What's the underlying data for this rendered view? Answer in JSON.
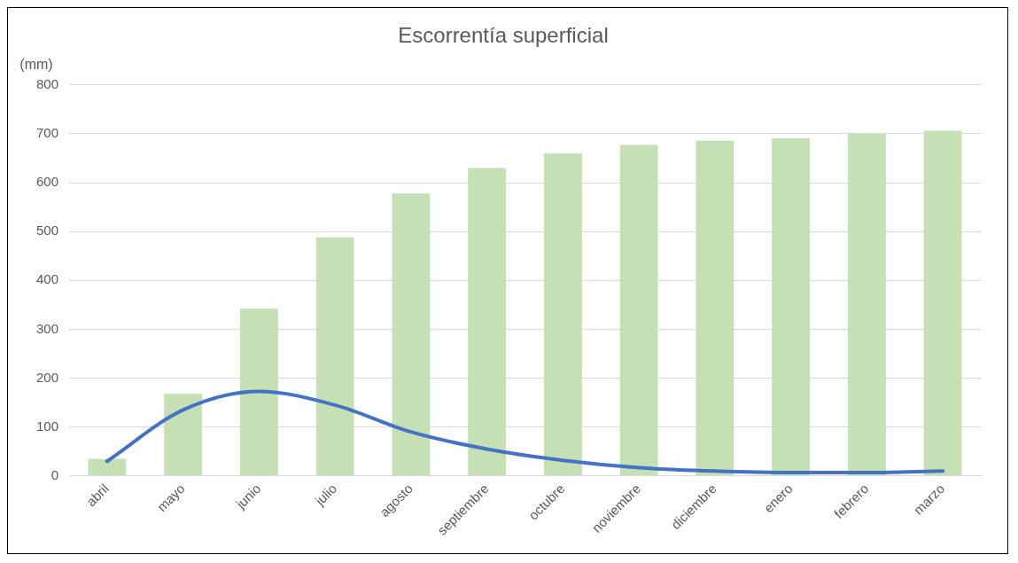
{
  "chart_data": {
    "type": "bar",
    "title": "Escorrentía superficial",
    "ylabel": "(mm)",
    "categories": [
      "abril",
      "mayo",
      "junio",
      "julio",
      "agosto",
      "septiembre",
      "octubre",
      "noviembre",
      "diciembre",
      "enero",
      "febrero",
      "marzo"
    ],
    "series": [
      {
        "color": "#c5e0b4",
        "values": [
          35,
          168,
          342,
          488,
          578,
          630,
          660,
          677,
          686,
          691,
          700,
          706
        ]
      },
      {
        "type": "line",
        "color": "#4472c4",
        "values": [
          30,
          135,
          173,
          145,
          90,
          55,
          32,
          17,
          10,
          7,
          7,
          10
        ]
      }
    ],
    "ylim": [
      0,
      800
    ],
    "yticks": [
      0,
      100,
      200,
      300,
      400,
      500,
      600,
      700,
      800
    ],
    "grid": "y",
    "legend": false,
    "marker": "none",
    "line_style": "solid"
  }
}
